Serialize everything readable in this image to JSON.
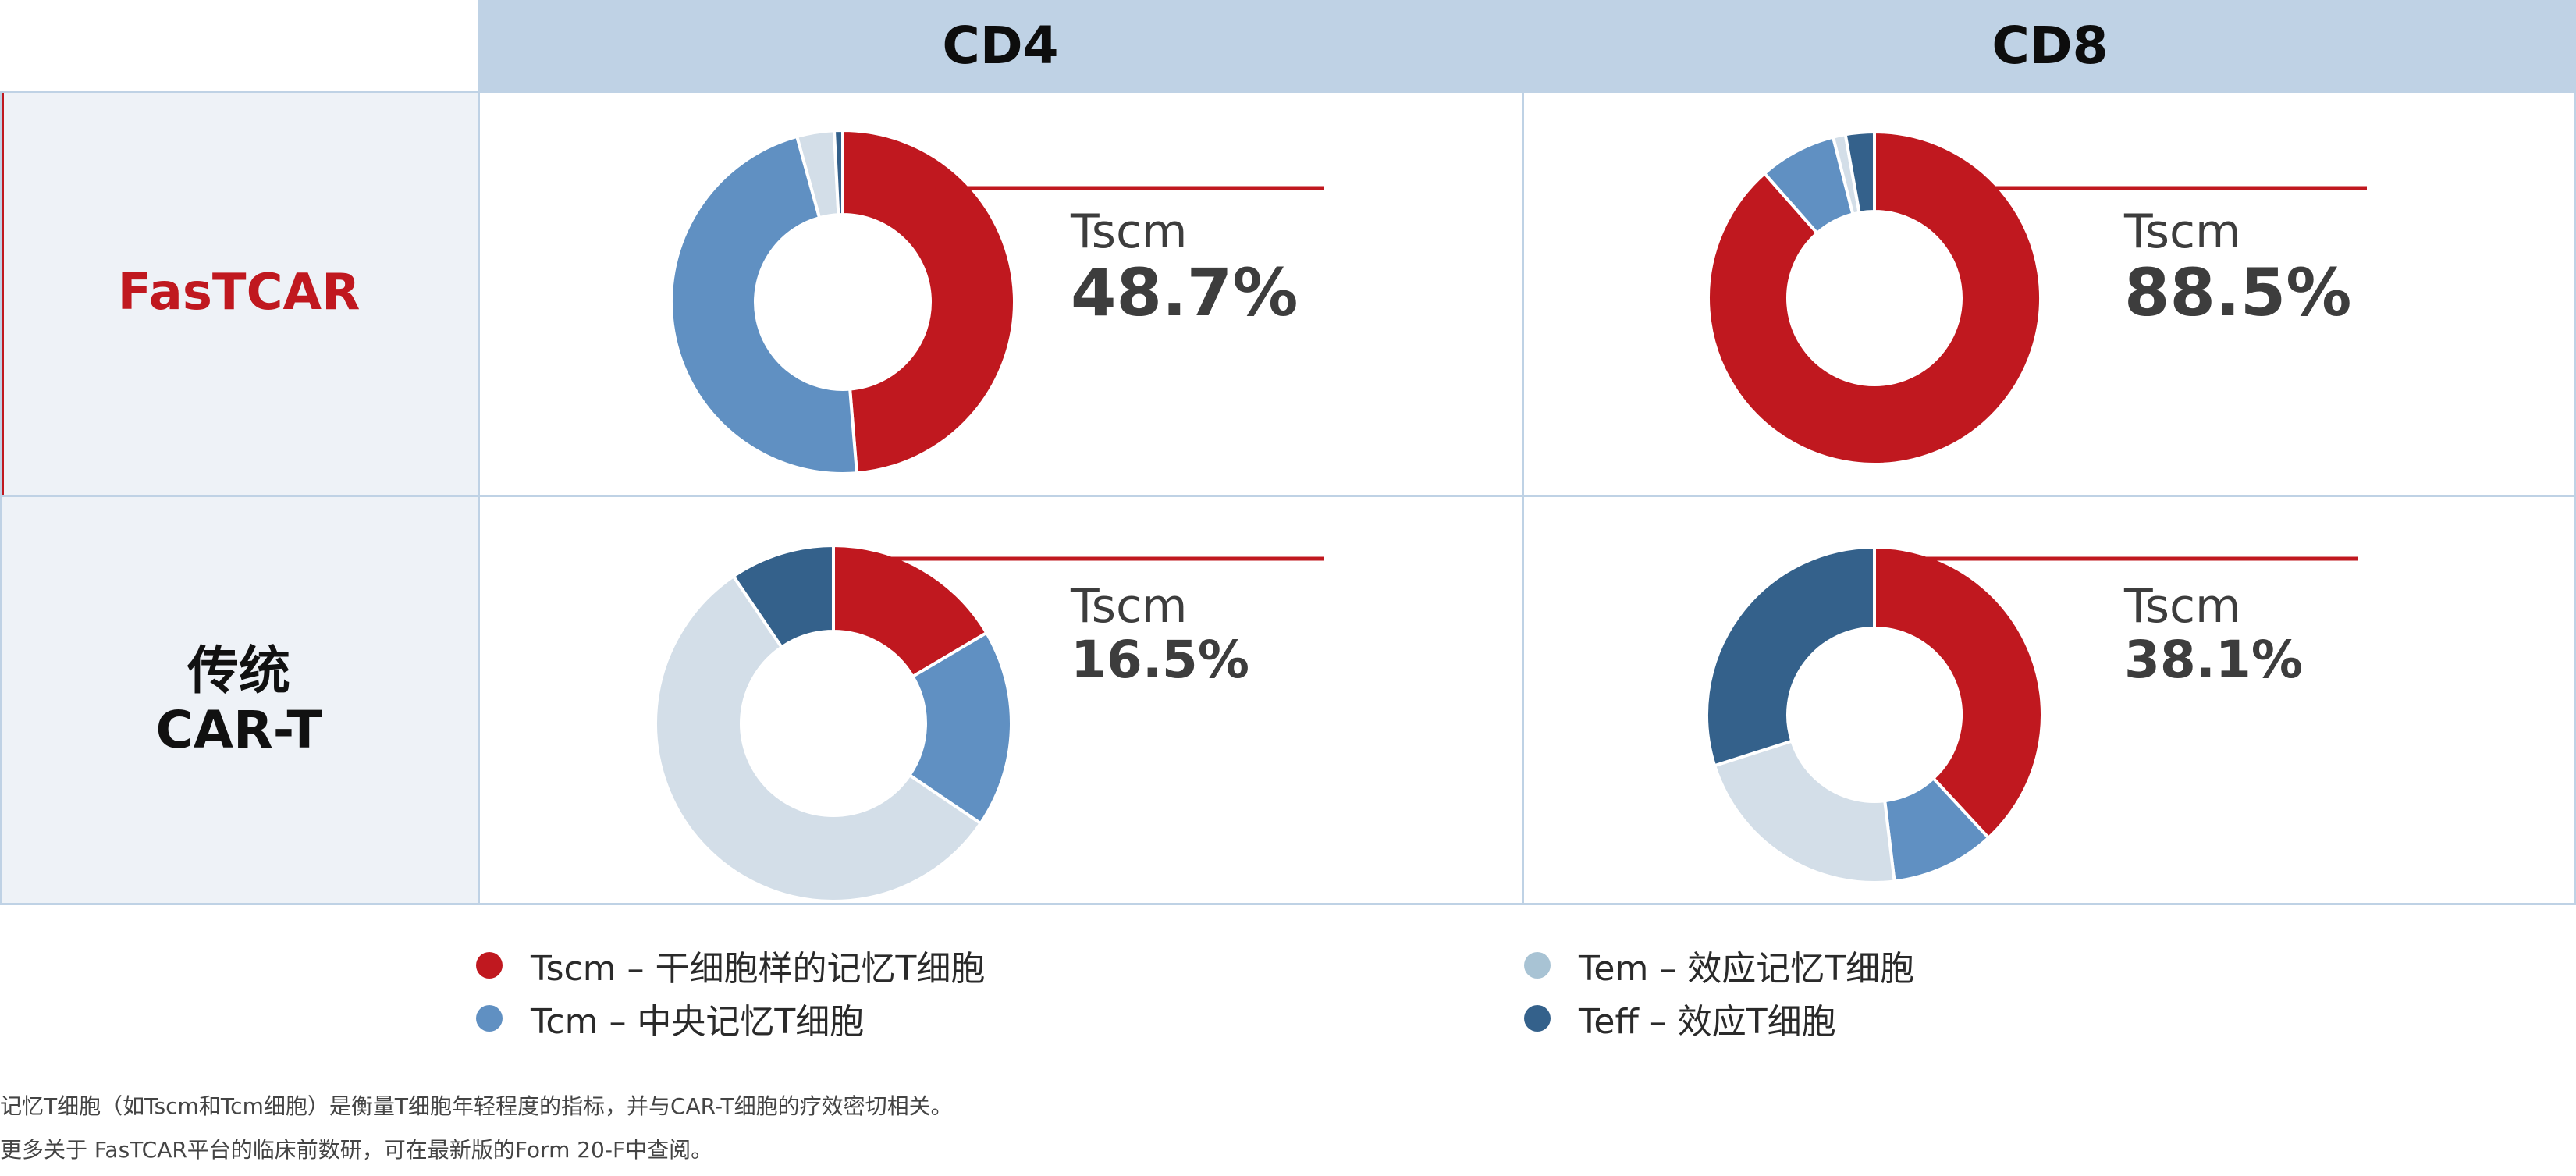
{
  "header": {
    "columns": [
      "CD4",
      "CD8"
    ]
  },
  "rows": [
    {
      "label_lines": [
        "FasTCAR"
      ],
      "color": "#c0181f"
    },
    {
      "label_lines": [
        "传统",
        "CAR-T"
      ],
      "color": "#111111"
    }
  ],
  "colors": {
    "tscm": "#c0181f",
    "tcm": "#6090c2",
    "tem": "#d3dee8",
    "teff": "#34618b",
    "header_bg": "#bfd2e5",
    "row_header_bg": "#eef2f7",
    "grid_line": "#bfd2e5",
    "legend_tem_dot": "#a8c3d4"
  },
  "chart_data": [
    {
      "type": "pie",
      "row": "FasTCAR",
      "column": "CD4",
      "highlight_label": "Tscm",
      "highlight_value": "48.7%",
      "slices": [
        {
          "name": "Tscm",
          "value": 48.7,
          "color_key": "tscm"
        },
        {
          "name": "Tcm",
          "value": 47.0,
          "color_key": "tcm"
        },
        {
          "name": "Tem",
          "value": 3.5,
          "color_key": "tem"
        },
        {
          "name": "Teff",
          "value": 0.8,
          "color_key": "teff"
        }
      ]
    },
    {
      "type": "pie",
      "row": "FasTCAR",
      "column": "CD8",
      "highlight_label": "Tscm",
      "highlight_value": "88.5%",
      "slices": [
        {
          "name": "Tscm",
          "value": 88.5,
          "color_key": "tscm"
        },
        {
          "name": "Tcm",
          "value": 7.5,
          "color_key": "tcm"
        },
        {
          "name": "Tem",
          "value": 1.2,
          "color_key": "tem"
        },
        {
          "name": "Teff",
          "value": 2.8,
          "color_key": "teff"
        }
      ]
    },
    {
      "type": "pie",
      "row": "传统 CAR-T",
      "column": "CD4",
      "highlight_label": "Tscm",
      "highlight_value": "16.5%",
      "slices": [
        {
          "name": "Tscm",
          "value": 16.5,
          "color_key": "tscm"
        },
        {
          "name": "Tcm",
          "value": 18.0,
          "color_key": "tcm"
        },
        {
          "name": "Tem",
          "value": 56.0,
          "color_key": "tem"
        },
        {
          "name": "Teff",
          "value": 9.5,
          "color_key": "teff"
        }
      ]
    },
    {
      "type": "pie",
      "row": "传统 CAR-T",
      "column": "CD8",
      "highlight_label": "Tscm",
      "highlight_value": "38.1%",
      "slices": [
        {
          "name": "Tscm",
          "value": 38.1,
          "color_key": "tscm"
        },
        {
          "name": "Tcm",
          "value": 10.0,
          "color_key": "tcm"
        },
        {
          "name": "Tem",
          "value": 22.0,
          "color_key": "tem"
        },
        {
          "name": "Teff",
          "value": 29.9,
          "color_key": "teff"
        }
      ]
    }
  ],
  "legend": [
    {
      "text": "Tscm – 干细胞样的记忆T细胞",
      "color_key": "tscm"
    },
    {
      "text": "Tcm – 中央记忆T细胞",
      "color_key": "tcm"
    },
    {
      "text": "Tem – 效应记忆T细胞",
      "color_key": "legend_tem_dot"
    },
    {
      "text": "Teff – 效应T细胞",
      "color_key": "teff"
    }
  ],
  "footnotes": [
    "记忆T细胞（如Tscm和Tcm细胞）是衡量T细胞年轻程度的指标，并与CAR-T细胞的疗效密切相关。",
    "更多关于 FasTCAR平台的临床前数研，可在最新版的Form 20-F中查阅。"
  ]
}
